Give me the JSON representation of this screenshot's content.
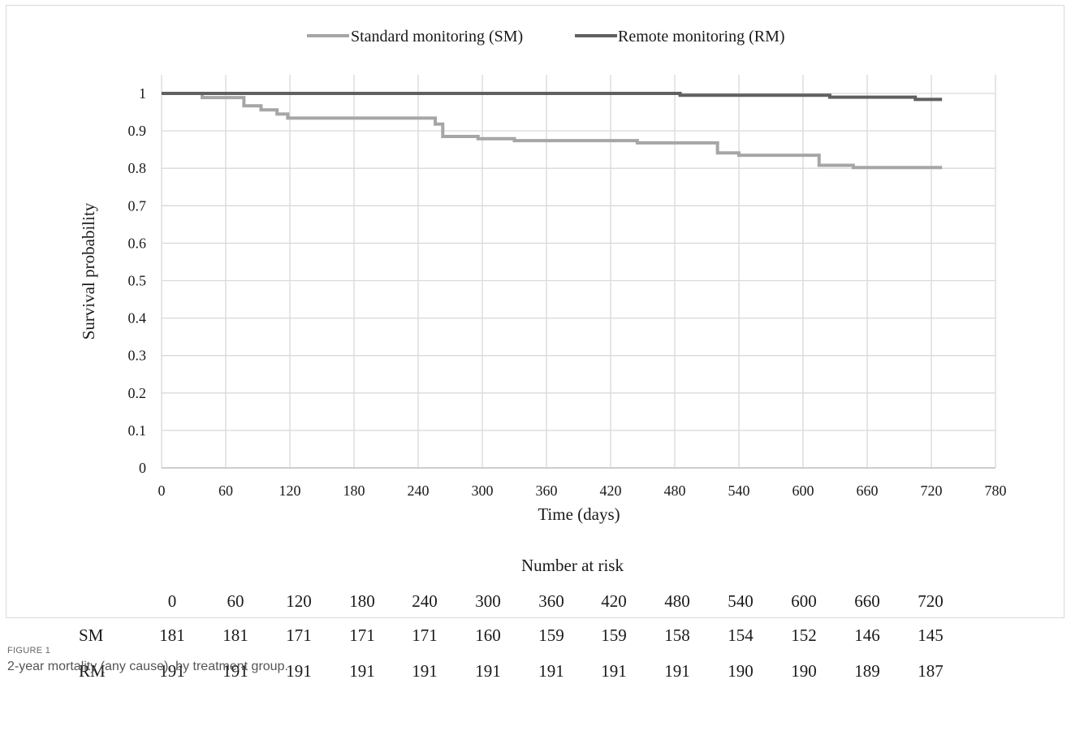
{
  "chart_data": {
    "type": "line",
    "step": true,
    "xlabel": "Time (days)",
    "ylabel": "Survival probability",
    "xlim": [
      0,
      780
    ],
    "ylim": [
      0,
      1
    ],
    "xticks": [
      "0",
      "60",
      "120",
      "180",
      "240",
      "300",
      "360",
      "420",
      "480",
      "540",
      "600",
      "660",
      "720",
      "780"
    ],
    "yticks": [
      "0",
      "0.1",
      "0.2",
      "0.3",
      "0.4",
      "0.5",
      "0.6",
      "0.7",
      "0.8",
      "0.9",
      "1"
    ],
    "grid": true,
    "legend_position": "top",
    "series": [
      {
        "name": "Standard monitoring (SM)",
        "color": "#a6a6a6",
        "points": [
          [
            0,
            1
          ],
          [
            38,
            0.989
          ],
          [
            77,
            0.967
          ],
          [
            93,
            0.956
          ],
          [
            108,
            0.945
          ],
          [
            118,
            0.934
          ],
          [
            256,
            0.918
          ],
          [
            263,
            0.885
          ],
          [
            296,
            0.879
          ],
          [
            330,
            0.874
          ],
          [
            445,
            0.868
          ],
          [
            520,
            0.841
          ],
          [
            540,
            0.835
          ],
          [
            615,
            0.808
          ],
          [
            647,
            0.802
          ],
          [
            730,
            0.802
          ]
        ]
      },
      {
        "name": "Remote monitoring (RM)",
        "color": "#606060",
        "points": [
          [
            0,
            1
          ],
          [
            485,
            0.995
          ],
          [
            625,
            0.99
          ],
          [
            705,
            0.984
          ],
          [
            730,
            0.984
          ]
        ]
      }
    ]
  },
  "risk_table": {
    "title": "Number at risk",
    "times": [
      "0",
      "60",
      "120",
      "180",
      "240",
      "300",
      "360",
      "420",
      "480",
      "540",
      "600",
      "660",
      "720"
    ],
    "rows": [
      {
        "label": "SM",
        "values": [
          "181",
          "181",
          "171",
          "171",
          "171",
          "160",
          "159",
          "159",
          "158",
          "154",
          "152",
          "146",
          "145"
        ]
      },
      {
        "label": "RM",
        "values": [
          "191",
          "191",
          "191",
          "191",
          "191",
          "191",
          "191",
          "191",
          "191",
          "190",
          "190",
          "189",
          "187"
        ]
      }
    ]
  },
  "caption": {
    "label": "FIGURE 1",
    "text": "2-year mortality (any cause), by treatment group."
  }
}
